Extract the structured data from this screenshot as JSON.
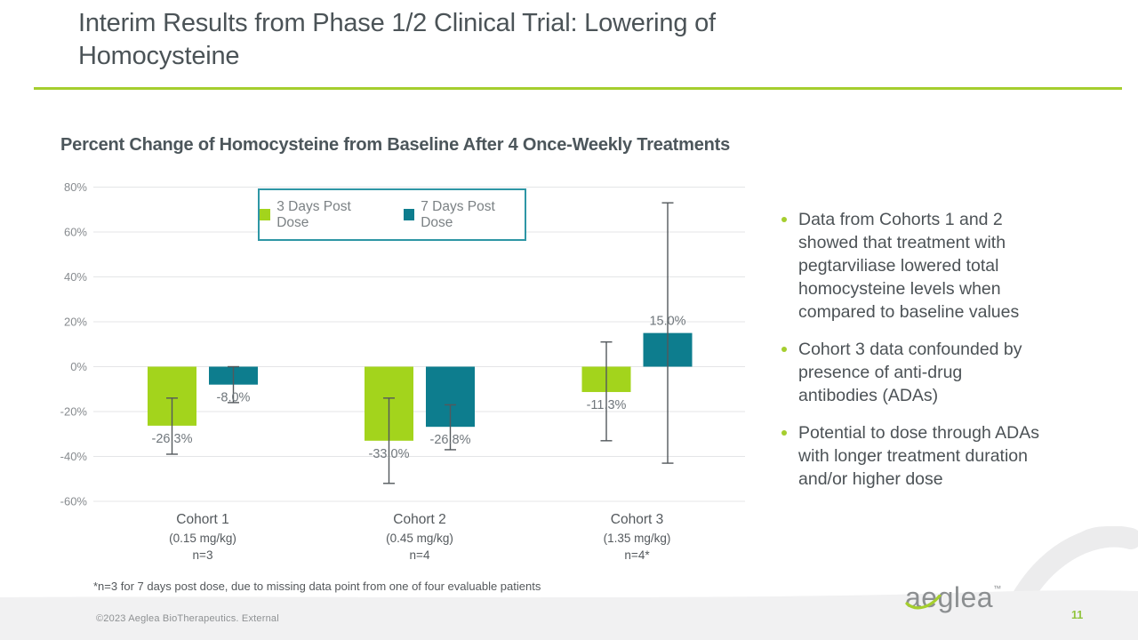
{
  "slide": {
    "title": "Interim Results from Phase 1/2 Clinical Trial: Lowering of\nHomocysteine",
    "page_number": "11",
    "footer_copyright": "©2023 Aeglea BioTherapeutics.  External",
    "logo_text": "aeglea",
    "logo_tm": "™",
    "footnote": "*n=3 for 7 days post dose, due to missing data point from one of four evaluable patients"
  },
  "bullets": [
    "Data from Cohorts 1 and 2\nshowed that treatment with\npegtarviliase lowered total\nhomocysteine levels when\ncompared to baseline values",
    "Cohort 3 data confounded by\npresence of anti-drug\nantibodies (ADAs)",
    "Potential to dose through ADAs\nwith longer treatment duration\nand/or higher dose"
  ],
  "chart_data": {
    "type": "bar",
    "title": "Percent Change of Homocysteine from Baseline After 4 Once-Weekly Treatments",
    "categories": [
      {
        "label": "Cohort 1",
        "dose": "(0.15 mg/kg)",
        "n": "n=3"
      },
      {
        "label": "Cohort 2",
        "dose": "(0.45 mg/kg)",
        "n": "n=4"
      },
      {
        "label": "Cohort 3",
        "dose": "(1.35 mg/kg)",
        "n": "n=4*"
      }
    ],
    "series": [
      {
        "name": "3 Days Post Dose",
        "color": "#a3d41c",
        "values": [
          -26.3,
          -33.0,
          -11.3
        ],
        "labels": [
          "-26.3%",
          "-33.0%",
          "-11.3%"
        ],
        "error_high": [
          -14,
          -14,
          11
        ],
        "error_low": [
          -39,
          -52,
          -33
        ]
      },
      {
        "name": "7 Days Post Dose",
        "color": "#0d7d8e",
        "values": [
          -8.0,
          -26.8,
          15.0
        ],
        "labels": [
          "-8.0%",
          "-26.8%",
          "15.0%"
        ],
        "error_high": [
          0,
          -17,
          73
        ],
        "error_low": [
          -16,
          -37,
          -43
        ]
      }
    ],
    "y_ticks": [
      "80%",
      "60%",
      "40%",
      "20%",
      "0%",
      "-20%",
      "-40%",
      "-60%"
    ],
    "y_tick_values": [
      80,
      60,
      40,
      20,
      0,
      -20,
      -40,
      -60
    ],
    "ylim": [
      -60,
      80
    ],
    "ylabel": "",
    "xlabel": "",
    "grid": true,
    "legend_position": "top-center"
  },
  "colors": {
    "accent_green": "#a5ce2e",
    "bar_green": "#a3d41c",
    "bar_teal": "#0d7d8e",
    "legend_border": "#2e96a5",
    "title_gray": "#4b5357",
    "body_text_gray": "#4c5256",
    "axis_label_gray": "#878b8f",
    "value_label_gray": "#6f767b",
    "gridline_gray": "#e4e5e7",
    "footer_band_gray": "#f1f1f2",
    "page_number_green": "#90c43c"
  }
}
